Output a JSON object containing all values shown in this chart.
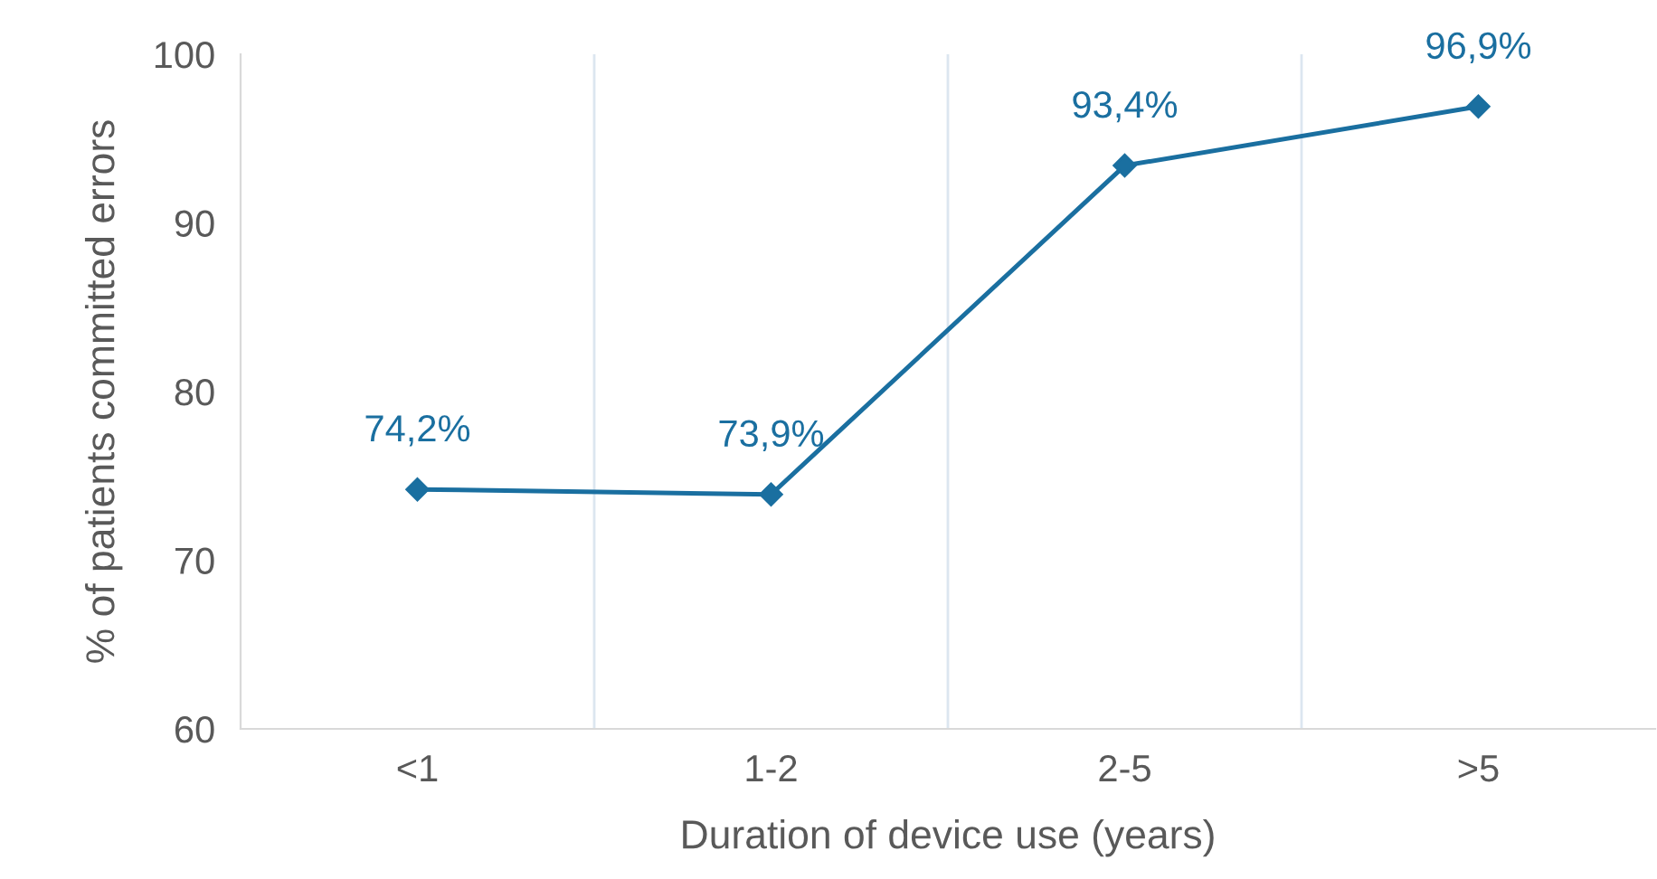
{
  "chart_data": {
    "type": "line",
    "xlabel": "Duration of device use (years)",
    "ylabel": "% of patients committed errors",
    "categories": [
      "<1",
      "1-2",
      "2-5",
      ">5"
    ],
    "series": [
      {
        "color": "#1a6fa0",
        "values": [
          74.2,
          73.9,
          93.4,
          96.9
        ],
        "value_labels": [
          "74,2%",
          "73,9%",
          "93,4%",
          "96,9%"
        ]
      }
    ],
    "ylim": [
      60,
      100
    ],
    "yticks": [
      60,
      70,
      80,
      90,
      100
    ],
    "grid": "x",
    "legend": false,
    "marker": "diamond",
    "line_style": "solid"
  }
}
